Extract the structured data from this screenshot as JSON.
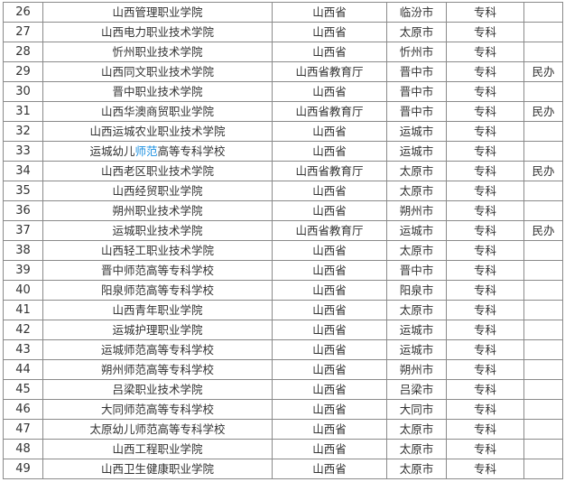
{
  "link_color": "#1a8fe0",
  "rows": [
    {
      "no": "26",
      "name": "山西管理职业学院",
      "authority": "山西省",
      "city": "临汾市",
      "level": "专科",
      "note": ""
    },
    {
      "no": "27",
      "name": "山西电力职业技术学院",
      "authority": "山西省",
      "city": "太原市",
      "level": "专科",
      "note": ""
    },
    {
      "no": "28",
      "name": "忻州职业技术学院",
      "authority": "山西省",
      "city": "忻州市",
      "level": "专科",
      "note": ""
    },
    {
      "no": "29",
      "name": "山西同文职业技术学院",
      "authority": "山西省教育厅",
      "city": "晋中市",
      "level": "专科",
      "note": "民办"
    },
    {
      "no": "30",
      "name": "晋中职业技术学院",
      "authority": "山西省",
      "city": "晋中市",
      "level": "专科",
      "note": ""
    },
    {
      "no": "31",
      "name": "山西华澳商贸职业学院",
      "authority": "山西省教育厅",
      "city": "晋中市",
      "level": "专科",
      "note": "民办"
    },
    {
      "no": "32",
      "name": "山西运城农业职业技术学院",
      "authority": "山西省",
      "city": "运城市",
      "level": "专科",
      "note": ""
    },
    {
      "no": "33",
      "name_pre": "运城幼儿",
      "name_link": "师范",
      "name_post": "高等专科学校",
      "authority": "山西省",
      "city": "运城市",
      "level": "专科",
      "note": ""
    },
    {
      "no": "34",
      "name": "山西老区职业技术学院",
      "authority": "山西省教育厅",
      "city": "太原市",
      "level": "专科",
      "note": "民办"
    },
    {
      "no": "35",
      "name": "山西经贸职业学院",
      "authority": "山西省",
      "city": "太原市",
      "level": "专科",
      "note": ""
    },
    {
      "no": "36",
      "name": "朔州职业技术学院",
      "authority": "山西省",
      "city": "朔州市",
      "level": "专科",
      "note": ""
    },
    {
      "no": "37",
      "name": "运城职业技术学院",
      "authority": "山西省教育厅",
      "city": "运城市",
      "level": "专科",
      "note": "民办"
    },
    {
      "no": "38",
      "name": "山西轻工职业技术学院",
      "authority": "山西省",
      "city": "太原市",
      "level": "专科",
      "note": ""
    },
    {
      "no": "39",
      "name": "晋中师范高等专科学校",
      "authority": "山西省",
      "city": "晋中市",
      "level": "专科",
      "note": ""
    },
    {
      "no": "40",
      "name": "阳泉师范高等专科学校",
      "authority": "山西省",
      "city": "阳泉市",
      "level": "专科",
      "note": ""
    },
    {
      "no": "41",
      "name": "山西青年职业学院",
      "authority": "山西省",
      "city": "太原市",
      "level": "专科",
      "note": ""
    },
    {
      "no": "42",
      "name": "运城护理职业学院",
      "authority": "山西省",
      "city": "运城市",
      "level": "专科",
      "note": ""
    },
    {
      "no": "43",
      "name": "运城师范高等专科学校",
      "authority": "山西省",
      "city": "运城市",
      "level": "专科",
      "note": ""
    },
    {
      "no": "44",
      "name": "朔州师范高等专科学校",
      "authority": "山西省",
      "city": "朔州市",
      "level": "专科",
      "note": ""
    },
    {
      "no": "45",
      "name": "吕梁职业技术学院",
      "authority": "山西省",
      "city": "吕梁市",
      "level": "专科",
      "note": ""
    },
    {
      "no": "46",
      "name": "大同师范高等专科学校",
      "authority": "山西省",
      "city": "大同市",
      "level": "专科",
      "note": ""
    },
    {
      "no": "47",
      "name": "太原幼儿师范高等专科学校",
      "authority": "山西省",
      "city": "太原市",
      "level": "专科",
      "note": ""
    },
    {
      "no": "48",
      "name": "山西工程职业学院",
      "authority": "山西省",
      "city": "太原市",
      "level": "专科",
      "note": ""
    },
    {
      "no": "49",
      "name": "山西卫生健康职业学院",
      "authority": "山西省",
      "city": "太原市",
      "level": "专科",
      "note": ""
    }
  ]
}
